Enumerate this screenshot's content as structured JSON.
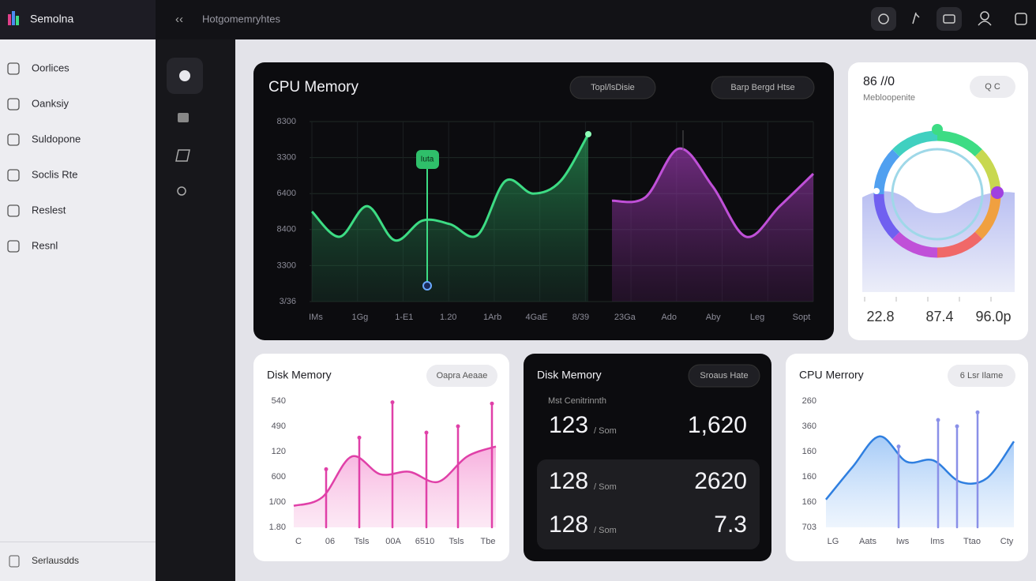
{
  "app": {
    "name": "Semolna"
  },
  "topbar": {
    "title": "Hotgomemryhtes"
  },
  "sidebar": {
    "items": [
      "Oorlices",
      "Oanksiy",
      "Suldopone",
      "Soclis Rte",
      "Reslest",
      "Resnl"
    ],
    "footer": "Serlausdds"
  },
  "main_chart": {
    "title": "CPU Memory",
    "buttons": [
      "Topl/lsDisie",
      "Barp Bergd Htse"
    ],
    "tooltip": "Iuta",
    "y_labels": [
      "8300",
      "3300",
      "6400",
      "8400",
      "3300",
      "3/36"
    ],
    "x_labels": [
      "IMs",
      "1Gg",
      "1-E1",
      "1.20",
      "1Arb",
      "4GaE",
      "8/39",
      "23Ga",
      "Ado",
      "Aby",
      "Leg",
      "Sopt"
    ],
    "ylim": [
      0,
      100
    ],
    "series": [
      {
        "color": "#3ddc84",
        "values": [
          50,
          36,
          53,
          34,
          45,
          43,
          37,
          67,
          60,
          67,
          93
        ]
      },
      {
        "color": "#c050d8",
        "values": [
          56,
          58,
          85,
          64,
          36,
          53,
          71
        ]
      }
    ]
  },
  "gauge": {
    "title": "86 //0",
    "subtitle": "Mebloopenite",
    "button": "Q  C",
    "stats": [
      "22.8",
      "87.4",
      "96.0p"
    ]
  },
  "disk_chart": {
    "title": "Disk Memory",
    "button": "Oapra Aeaae",
    "y_labels": [
      "540",
      "490",
      "120",
      "600",
      "1/00",
      "1.80"
    ],
    "x_labels": [
      "C",
      "06",
      "Tsls",
      "00A",
      "6510",
      "Tsls",
      "Tbe"
    ],
    "ylim": [
      0,
      100
    ],
    "color": "#e040a8",
    "values": [
      17,
      24,
      56,
      42,
      44,
      36,
      56,
      64
    ],
    "spikes": [
      46,
      71,
      99,
      75,
      80,
      98
    ]
  },
  "disk_stats": {
    "title": "Disk Memory",
    "button": "Sroaus Hate",
    "subtitle": "Mst Cenitrinnth",
    "rows": [
      [
        "123",
        "/ Som",
        "1,620"
      ],
      [
        "128",
        "/ Som",
        "2620"
      ],
      [
        "128",
        "/ Som",
        "7.3"
      ]
    ]
  },
  "cpu_chart": {
    "title": "CPU Merrory",
    "button": "6 Lsr Ilame",
    "y_labels": [
      "260",
      "360",
      "160",
      "160",
      "160",
      "703"
    ],
    "x_labels": [
      "LG",
      "Aats",
      "Iws",
      "Ims",
      "Ttao",
      "Cty"
    ],
    "ylim": [
      0,
      100
    ],
    "color": "#2f7fe0",
    "values": [
      22,
      48,
      72,
      52,
      53,
      36,
      39,
      68
    ],
    "spikes": [
      64,
      85,
      80,
      91
    ]
  }
}
